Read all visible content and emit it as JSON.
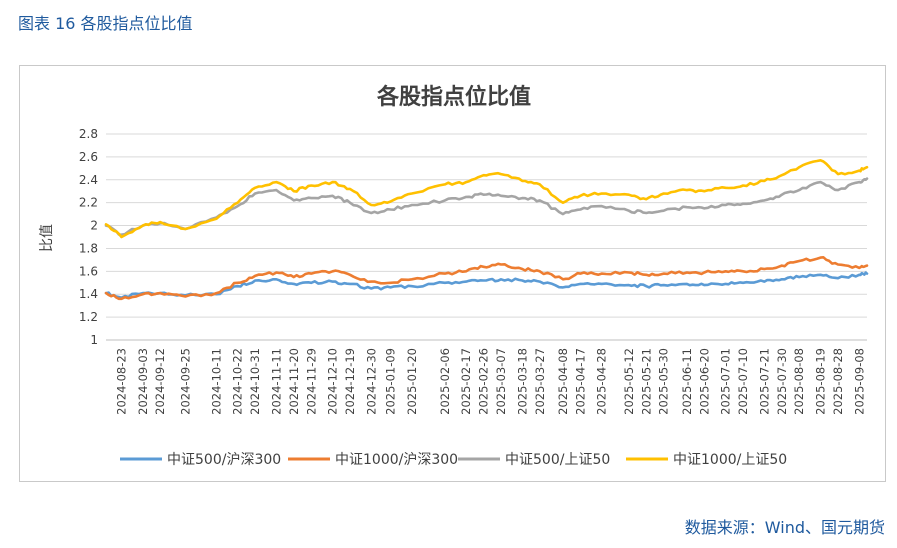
{
  "caption": "图表 16  各股指点位比值",
  "source": "数据来源：Wind、国元期货",
  "chart_data": {
    "type": "line",
    "title": "各股指点位比值",
    "ylabel": "比值",
    "xlabel": "",
    "ylim": [
      1,
      2.8
    ],
    "yticks": [
      "1",
      "1.2",
      "1.4",
      "1.6",
      "1.8",
      "2",
      "2.2",
      "2.4",
      "2.6",
      "2.8"
    ],
    "grid": true,
    "legend_position": "bottom",
    "x_tick_labels": [
      "2024-08-23",
      "2024-09-03",
      "2024-09-12",
      "2024-09-25",
      "2024-10-11",
      "2024-10-22",
      "2024-10-31",
      "2024-11-11",
      "2024-11-20",
      "2024-11-29",
      "2024-12-10",
      "2024-12-19",
      "2024-12-30",
      "2025-01-09",
      "2025-01-20",
      "2025-02-06",
      "2025-02-17",
      "2025-02-26",
      "2025-03-07",
      "2025-03-18",
      "2025-03-27",
      "2025-04-08",
      "2025-04-17",
      "2025-04-28",
      "2025-05-12",
      "2025-05-21",
      "2025-05-30",
      "2025-06-11",
      "2025-06-20",
      "2025-07-01",
      "2025-07-10",
      "2025-07-21",
      "2025-07-30",
      "2025-08-08",
      "2025-08-19",
      "2025-08-28",
      "2025-09-08"
    ],
    "x": [
      "2024-08-15",
      "2024-08-23",
      "2024-09-03",
      "2024-09-12",
      "2024-09-25",
      "2024-10-11",
      "2024-10-22",
      "2024-10-31",
      "2024-11-11",
      "2024-11-20",
      "2024-11-29",
      "2024-12-10",
      "2024-12-19",
      "2024-12-30",
      "2025-01-09",
      "2025-01-20",
      "2025-02-06",
      "2025-02-17",
      "2025-02-26",
      "2025-03-07",
      "2025-03-18",
      "2025-03-27",
      "2025-04-08",
      "2025-04-17",
      "2025-04-28",
      "2025-05-12",
      "2025-05-21",
      "2025-05-30",
      "2025-06-11",
      "2025-06-20",
      "2025-07-01",
      "2025-07-10",
      "2025-07-21",
      "2025-07-30",
      "2025-08-08",
      "2025-08-19",
      "2025-08-28",
      "2025-09-08",
      "2025-09-12"
    ],
    "series": [
      {
        "name": "中证500/沪深300",
        "color": "#5b9bd5",
        "values": [
          1.41,
          1.37,
          1.41,
          1.41,
          1.39,
          1.4,
          1.47,
          1.52,
          1.53,
          1.49,
          1.5,
          1.51,
          1.49,
          1.45,
          1.46,
          1.47,
          1.5,
          1.51,
          1.52,
          1.53,
          1.52,
          1.51,
          1.46,
          1.49,
          1.49,
          1.48,
          1.47,
          1.48,
          1.49,
          1.48,
          1.49,
          1.5,
          1.51,
          1.53,
          1.55,
          1.57,
          1.54,
          1.57,
          1.58
        ]
      },
      {
        "name": "中证1000/沪深300",
        "color": "#ed7d31",
        "values": [
          1.41,
          1.36,
          1.4,
          1.41,
          1.38,
          1.41,
          1.5,
          1.56,
          1.59,
          1.55,
          1.58,
          1.6,
          1.57,
          1.51,
          1.5,
          1.53,
          1.58,
          1.6,
          1.64,
          1.66,
          1.62,
          1.6,
          1.53,
          1.58,
          1.58,
          1.59,
          1.57,
          1.58,
          1.59,
          1.59,
          1.6,
          1.6,
          1.62,
          1.65,
          1.69,
          1.72,
          1.66,
          1.63,
          1.65
        ]
      },
      {
        "name": "中证500/上证50",
        "color": "#a5a5a5",
        "values": [
          2.0,
          1.92,
          2.0,
          2.02,
          1.97,
          2.07,
          2.17,
          2.28,
          2.31,
          2.22,
          2.24,
          2.26,
          2.2,
          2.11,
          2.14,
          2.18,
          2.22,
          2.25,
          2.27,
          2.26,
          2.24,
          2.22,
          2.1,
          2.14,
          2.17,
          2.13,
          2.11,
          2.13,
          2.16,
          2.15,
          2.18,
          2.19,
          2.22,
          2.27,
          2.31,
          2.38,
          2.31,
          2.38,
          2.41
        ]
      },
      {
        "name": "中证1000/上证50",
        "color": "#ffc000",
        "values": [
          2.01,
          1.9,
          2.0,
          2.03,
          1.97,
          2.06,
          2.2,
          2.33,
          2.38,
          2.3,
          2.35,
          2.38,
          2.32,
          2.18,
          2.21,
          2.28,
          2.36,
          2.38,
          2.44,
          2.45,
          2.39,
          2.36,
          2.2,
          2.26,
          2.28,
          2.27,
          2.23,
          2.28,
          2.31,
          2.3,
          2.33,
          2.35,
          2.39,
          2.44,
          2.51,
          2.57,
          2.45,
          2.48,
          2.51
        ]
      }
    ]
  }
}
